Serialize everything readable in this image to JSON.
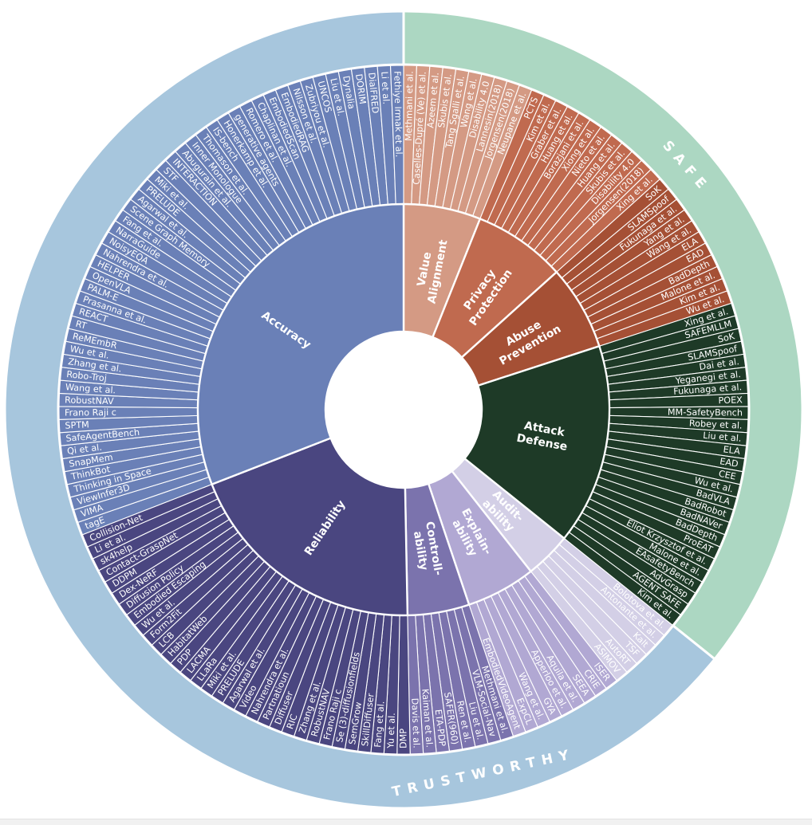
{
  "chart_data": {
    "type": "sunburst",
    "title": "",
    "groups": [
      {
        "name": "SAFE",
        "label": "S A F E",
        "color": "#acd7c2",
        "categories": [
          {
            "name": "Value Alignment",
            "label_lines": [
              "Value",
              "Alignment"
            ],
            "color": "#d49a84",
            "items": [
              "Methmani et al.",
              "Caselles-Dupré (Ve) et al.",
              "Azeem et al.",
              "Skubis et al.",
              "Tang Sgalli et al.",
              "Wang et al.",
              "Disability 4.0",
              "Lannesin(2018)",
              "Jorgensen(2018)",
              "Neupane et al."
            ]
          },
          {
            "name": "Privacy Protection",
            "label_lines": [
              "Privacy",
              "Protection"
            ],
            "color": "#c06a4f",
            "items": [
              "PCTS",
              "Kim et al.",
              "Graber et al.",
              "Huang et al.",
              "Borazjani et al.",
              "Xiong et al.",
              "Nieto et al.",
              "Huang et al.",
              "Skubis et al.",
              "Disability 4.0",
              "Jorgensen(2018)",
              "Xing et al."
            ]
          },
          {
            "name": "Abuse Prevention",
            "label_lines": [
              "Abuse",
              "Prevention"
            ],
            "color": "#a55035",
            "items": [
              "SoK",
              "SLAMSpoof",
              "Fukunaga et al.",
              "Yang et al.",
              "Wang et al.",
              "ELA",
              "EAD",
              "BadDepth",
              "Malone et al.",
              "Kim et al.",
              "Wu et al."
            ]
          },
          {
            "name": "Attack Defense",
            "label_lines": [
              "Attack",
              "Defense"
            ],
            "color": "#1e3a27",
            "items": [
              "Xing et al.",
              "SAFEMLLM",
              "SoK",
              "SLAMSpoof",
              "Dai et al.",
              "Yeganegi et al.",
              "Fukunaga et al.",
              "POEX",
              "MM-SafetyBench",
              "Robey et al.",
              "Liu et al.",
              "ELA",
              "EAD",
              "CEE",
              "Wu et al.",
              "BadVLA",
              "BadRobot",
              "BadNAVer",
              "BadDepth",
              "ProEAT",
              "Eliot Krzysztof et al.",
              "Malone et al.",
              "EAsafetyBench",
              "AdvGrasp",
              "AGENT SAFE",
              "Kim et al."
            ]
          }
        ]
      },
      {
        "name": "TRUSTWORTHY",
        "label": "T R U S T W O R T H Y",
        "color": "#a7c6dd",
        "categories": [
          {
            "name": "Auditability",
            "label_lines": [
              "Audit-",
              "ability"
            ],
            "color": "#d3cfe6",
            "items": [
              "Bolotova et al.",
              "Antonante et al.",
              "Kalt",
              "TSF",
              "AutoRT",
              "ASIMOV"
            ]
          },
          {
            "name": "Explainability",
            "label_lines": [
              "Explain-",
              "ability"
            ],
            "color": "#b1a8d3",
            "items": [
              "ISER",
              "CRIE",
              "SEEA",
              "Aquila et al.",
              "Apperloo et al.",
              "GYA",
              "Wang et al.",
              "ExpCL",
              "EmbodiedVideoAgent"
            ]
          },
          {
            "name": "Controllability",
            "label_lines": [
              "Controll-",
              "ability"
            ],
            "color": "#7b73ad",
            "items": [
              "Methmani et al.",
              "VLM-Social-Nav",
              "Liu et al.",
              "Ren et al.",
              "SAFER(960)",
              "ETA-PDP",
              "Kaiman et al.",
              "Davis et al."
            ]
          },
          {
            "name": "Reliability",
            "label_lines": [
              "Reliability"
            ],
            "color": "#4a4680",
            "items": [
              "DMP",
              "Yu et al.",
              "Fang et al.",
              "SkillDiffuser",
              "SemGrow",
              "Se (3)-diffusionfields",
              "Frano Raji c",
              "RobustNAV",
              "Zhang et al.",
              "RIC",
              "Diffuser",
              "Partnatioun",
              "Nahrendra et al.",
              "Video",
              "Agarwal et al.",
              "PRELUDE",
              "Miki et al.",
              "LLaRa",
              "LACMA",
              "PDP",
              "HabitatWeb",
              "LCB",
              "Form2Fit",
              "Wu et al.",
              "Embodied Escaping",
              "Diffusion Policy",
              "Dex-NeRF",
              "DDPM",
              "Contact-GraspNet",
              "sk4help",
              "Li et al.",
              "Collision-Net"
            ]
          },
          {
            "name": "Accuracy",
            "label_lines": [
              "Accuracy"
            ],
            "color": "#6a80b7",
            "items": [
              "tagE",
              "VIMA",
              "ViewInfer3D",
              "Thinking in Space",
              "ThinkBot",
              "SnapMem",
              "Qi et al.",
              "SafeAgentBench",
              "SPTM",
              "Frano Raji c",
              "RobustNAV",
              "Wang et al.",
              "Robo-Troj",
              "Zhang et al.",
              "Wu et al.",
              "ReMEmbR",
              "RT",
              "REACT",
              "Prasanna et al.",
              "PALM-E",
              "OpenVLA",
              "HELPER",
              "Nahrendra et al.",
              "NoisyEQA",
              "NarraGuide",
              "Fang et al.",
              "Scene Graph Memory",
              "Agarwal et al.",
              "PRELUDE",
              "Miki et al.",
              "STF",
              "INTERACTION",
              "Abugurain et al.",
              "Inner Monologue",
              "Thomason et al.",
              "IS-bench",
              "Honerkamp et al.",
              "generative agents",
              "Romero et al.",
              "Chaplinan et al.",
              "EmbodiedScan",
              "EmbodiedRAG",
              "Nilsson et al.",
              "Zubriyou et al.",
              "UNCOS",
              "Liu et al.",
              "Dynalia",
              "DORIM",
              "DialFRED",
              "Li et al.",
              "Fethiye Irmak et al."
            ]
          }
        ]
      }
    ]
  }
}
